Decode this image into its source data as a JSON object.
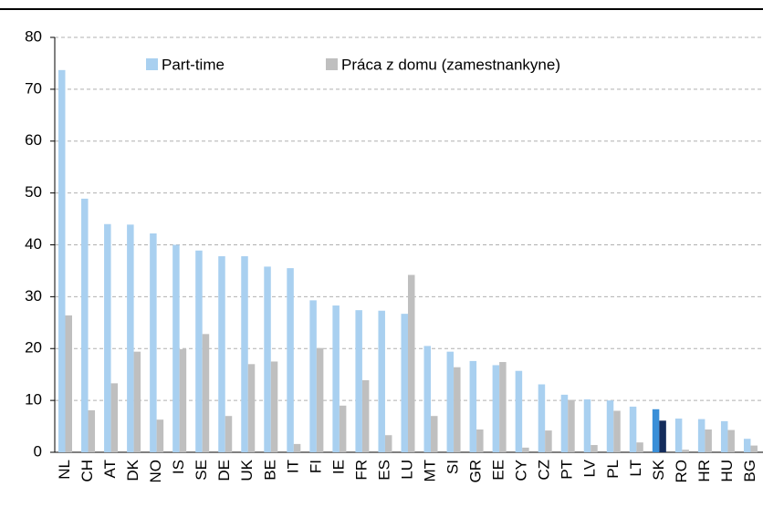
{
  "chart_data": {
    "type": "bar",
    "categories": [
      "NL",
      "CH",
      "AT",
      "DK",
      "NO",
      "IS",
      "SE",
      "DE",
      "UK",
      "BE",
      "IT",
      "FI",
      "IE",
      "FR",
      "ES",
      "LU",
      "MT",
      "SI",
      "GR",
      "EE",
      "CY",
      "CZ",
      "PT",
      "LV",
      "PL",
      "LT",
      "SK",
      "RO",
      "HR",
      "HU",
      "BG"
    ],
    "series": [
      {
        "name": "Part-time",
        "color": "#a9d0f0",
        "highlight_color": "#3a8fd8",
        "values": [
          73.7,
          48.9,
          44.0,
          43.9,
          42.2,
          40.0,
          38.9,
          37.8,
          37.8,
          35.8,
          35.5,
          29.3,
          28.3,
          27.4,
          27.3,
          26.7,
          20.5,
          19.4,
          17.6,
          16.8,
          15.7,
          13.1,
          11.1,
          10.2,
          10.0,
          8.8,
          8.3,
          6.5,
          6.4,
          6.0,
          2.6
        ]
      },
      {
        "name": "Práca z domu (zamestnankyne)",
        "color": "#bfbfbf",
        "highlight_color": "#142c5c",
        "values": [
          26.4,
          8.1,
          13.3,
          19.4,
          6.3,
          19.9,
          22.8,
          7.0,
          17.0,
          17.5,
          1.6,
          20.1,
          9.0,
          13.9,
          3.3,
          34.2,
          7.0,
          16.4,
          4.4,
          17.4,
          0.9,
          4.2,
          10.1,
          1.4,
          8.0,
          1.9,
          6.1,
          0.5,
          4.4,
          4.3,
          1.3
        ]
      }
    ],
    "highlight_category": "SK",
    "ylim": [
      0,
      80
    ],
    "yticks": [
      0,
      10,
      20,
      30,
      40,
      50,
      60,
      70,
      80
    ],
    "grid": true,
    "legend": "upper center"
  }
}
